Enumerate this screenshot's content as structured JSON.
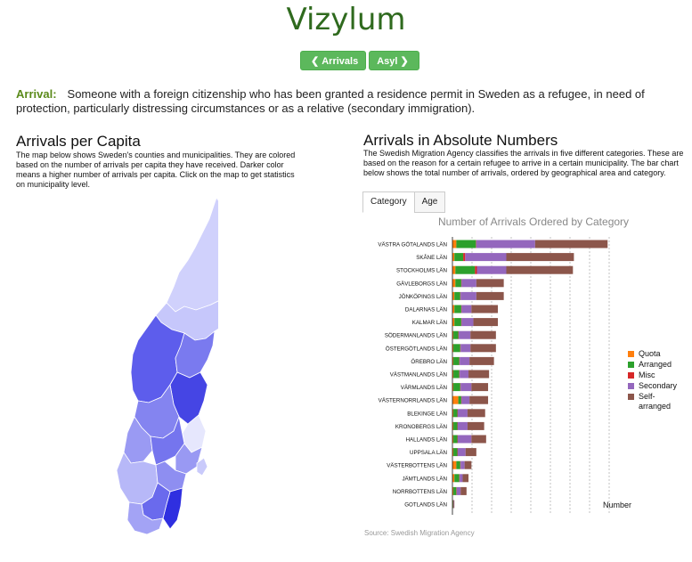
{
  "app": {
    "title": "Vizylum"
  },
  "nav": {
    "prev_label": "Arrivals",
    "next_label": "Asyl"
  },
  "definition": {
    "term": "Arrival:",
    "text": "Someone with a foreign citizenship who has been granted a residence permit in Sweden as a refugee, in need of protection, particularly distressing circumstances or as a relative (secondary immigration)."
  },
  "left_panel": {
    "heading": "Arrivals per Capita",
    "description": "The map below shows Sweden's counties and municipalities. They are colored based on the number of arrivals per capita they have received. Darker color means a higher number of arrivals per capita. Click on the map to get statistics on municipality level."
  },
  "right_panel": {
    "heading": "Arrivals in Absolute Numbers",
    "description": "The Swedish Migration Agency classifies the arrivals in five different categories. These are based on the reason for a certain refugee to arrive in a certain municipality. The bar chart below shows the total number of arrivals, ordered by geographical area and category.",
    "tabs": [
      "Category",
      "Age"
    ],
    "source": "Source: Swedish Migration Agency"
  },
  "chart_data": {
    "type": "bar",
    "orientation": "horizontal",
    "stacked": true,
    "title": "Number of Arrivals Ordered by Category",
    "xlabel": "Number",
    "ylabel": "",
    "xlim": [
      0,
      8000
    ],
    "xticks": [
      0,
      1000,
      2000,
      3000,
      4000,
      5000,
      6000,
      7000,
      8000
    ],
    "grid": "vertical dashed",
    "legend_position": "right",
    "categories": [
      "VÄSTRA GÖTALANDS LÄN",
      "SKÅNE LÄN",
      "STOCKHOLMS LÄN",
      "GÄVLEBORGS LÄN",
      "JÖNKÖPINGS LÄN",
      "DALARNAS LÄN",
      "KALMAR LÄN",
      "SÖDERMANLANDS LÄN",
      "ÖSTERGÖTLANDS LÄN",
      "ÖREBRO LÄN",
      "VÄSTMANLANDS LÄN",
      "VÄRMLANDS LÄN",
      "VÄSTERNORRLANDS LÄN",
      "BLEKINGE LÄN",
      "KRONOBERGS LÄN",
      "HALLANDS LÄN",
      "UPPSALA LÄN",
      "VÄSTERBOTTENS LÄN",
      "JÄMTLANDS LÄN",
      "NORRBOTTENS LÄN",
      "GOTLANDS LÄN"
    ],
    "series": [
      {
        "name": "Quota",
        "color": "#ff7f0e",
        "values": [
          200,
          100,
          150,
          150,
          100,
          100,
          100,
          50,
          50,
          50,
          50,
          50,
          300,
          50,
          50,
          50,
          50,
          200,
          100,
          50,
          20
        ]
      },
      {
        "name": "Arranged",
        "color": "#2ca02c",
        "values": [
          1000,
          450,
          1000,
          300,
          300,
          350,
          350,
          250,
          350,
          300,
          300,
          350,
          150,
          200,
          200,
          200,
          200,
          200,
          250,
          150,
          20
        ]
      },
      {
        "name": "Misc",
        "color": "#d62728",
        "values": [
          20,
          100,
          100,
          20,
          20,
          20,
          20,
          20,
          20,
          20,
          20,
          20,
          20,
          20,
          20,
          20,
          20,
          20,
          20,
          20,
          5
        ]
      },
      {
        "name": "Secondary",
        "color": "#9467bd",
        "values": [
          3000,
          2100,
          1500,
          750,
          800,
          500,
          600,
          600,
          500,
          500,
          450,
          550,
          400,
          500,
          500,
          700,
          400,
          200,
          150,
          200,
          20
        ]
      },
      {
        "name": "Self-arranged",
        "color": "#8c564b",
        "values": [
          3700,
          3450,
          3400,
          1400,
          1400,
          1350,
          1250,
          1300,
          1300,
          1250,
          1050,
          850,
          950,
          900,
          850,
          750,
          550,
          350,
          300,
          300,
          35
        ]
      }
    ]
  },
  "map_data": {
    "description_colors": {
      "light": "#cfd0fb",
      "mid": "#8c8cf2",
      "dark": "#3535e0"
    }
  }
}
